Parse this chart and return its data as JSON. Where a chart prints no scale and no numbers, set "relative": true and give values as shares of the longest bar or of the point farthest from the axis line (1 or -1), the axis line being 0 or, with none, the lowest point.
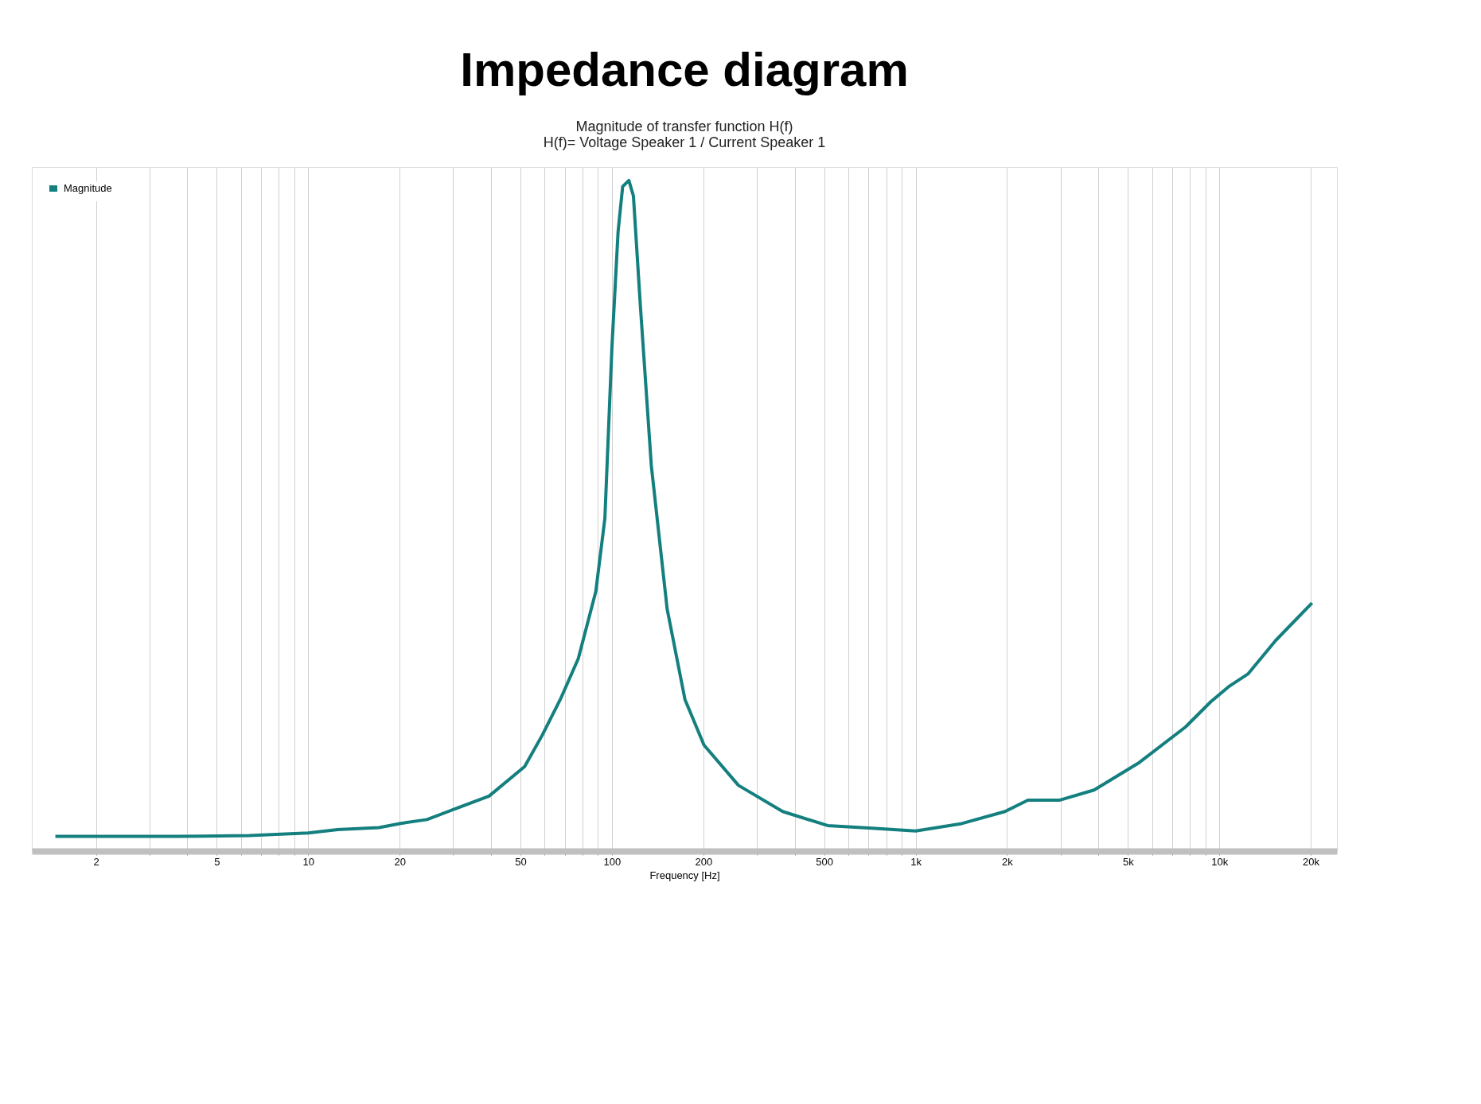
{
  "chart_data": {
    "type": "line",
    "title": "Impedance diagram",
    "subtitle": "Magnitude of transfer function H(f)",
    "annotations": [
      "H(f)= Voltage Speaker 1 / Current Speaker 1"
    ],
    "xlabel": "Frequency [Hz]",
    "log": "x",
    "grid": "x",
    "relative": true,
    "legend": "top left",
    "marker": "none",
    "line_style": "solid",
    "xlim": [
      1.23,
      24400
    ],
    "xticks": [
      {
        "value": 2,
        "label": "2"
      },
      {
        "value": 3,
        "label": null
      },
      {
        "value": 4,
        "label": null
      },
      {
        "value": 5,
        "label": "5"
      },
      {
        "value": 6,
        "label": null
      },
      {
        "value": 7,
        "label": null
      },
      {
        "value": 8,
        "label": null
      },
      {
        "value": 9,
        "label": null
      },
      {
        "value": 10,
        "label": "10"
      },
      {
        "value": 20,
        "label": "20"
      },
      {
        "value": 30,
        "label": null
      },
      {
        "value": 40,
        "label": null
      },
      {
        "value": 50,
        "label": "50"
      },
      {
        "value": 60,
        "label": null
      },
      {
        "value": 70,
        "label": null
      },
      {
        "value": 80,
        "label": null
      },
      {
        "value": 90,
        "label": null
      },
      {
        "value": 100,
        "label": "100"
      },
      {
        "value": 200,
        "label": "200"
      },
      {
        "value": 300,
        "label": null
      },
      {
        "value": 400,
        "label": null
      },
      {
        "value": 500,
        "label": "500"
      },
      {
        "value": 600,
        "label": null
      },
      {
        "value": 700,
        "label": null
      },
      {
        "value": 800,
        "label": null
      },
      {
        "value": 900,
        "label": null
      },
      {
        "value": 1000,
        "label": "1k"
      },
      {
        "value": 2000,
        "label": "2k"
      },
      {
        "value": 3000,
        "label": null
      },
      {
        "value": 4000,
        "label": null
      },
      {
        "value": 5000,
        "label": "5k"
      },
      {
        "value": 6000,
        "label": null
      },
      {
        "value": 7000,
        "label": null
      },
      {
        "value": 8000,
        "label": null
      },
      {
        "value": 9000,
        "label": null
      },
      {
        "value": 10000,
        "label": "10k"
      },
      {
        "value": 20000,
        "label": "20k"
      }
    ],
    "series": [
      {
        "name": "Magnitude",
        "color": "#147f7f",
        "x": [
          1.47,
          3.7,
          6.4,
          10,
          12.5,
          17.1,
          20,
          24.6,
          30.1,
          39.4,
          51.6,
          59,
          67.6,
          77.5,
          88.5,
          94.8,
          100,
          104.8,
          108.5,
          113.7,
          117.7,
          124,
          134.8,
          152,
          174,
          201,
          261,
          365,
          513,
          719,
          1000,
          1419,
          1970,
          2343,
          2986,
          3870,
          5450,
          7740,
          9390,
          10800,
          12420,
          15330,
          20200
        ],
        "values": [
          0.022,
          0.022,
          0.023,
          0.027,
          0.032,
          0.035,
          0.041,
          0.047,
          0.062,
          0.082,
          0.126,
          0.173,
          0.226,
          0.287,
          0.387,
          0.496,
          0.751,
          0.924,
          0.991,
          1,
          0.977,
          0.815,
          0.575,
          0.361,
          0.226,
          0.158,
          0.098,
          0.059,
          0.038,
          0.034,
          0.03,
          0.041,
          0.059,
          0.076,
          0.076,
          0.091,
          0.132,
          0.185,
          0.223,
          0.246,
          0.264,
          0.314,
          0.37
        ]
      }
    ]
  }
}
